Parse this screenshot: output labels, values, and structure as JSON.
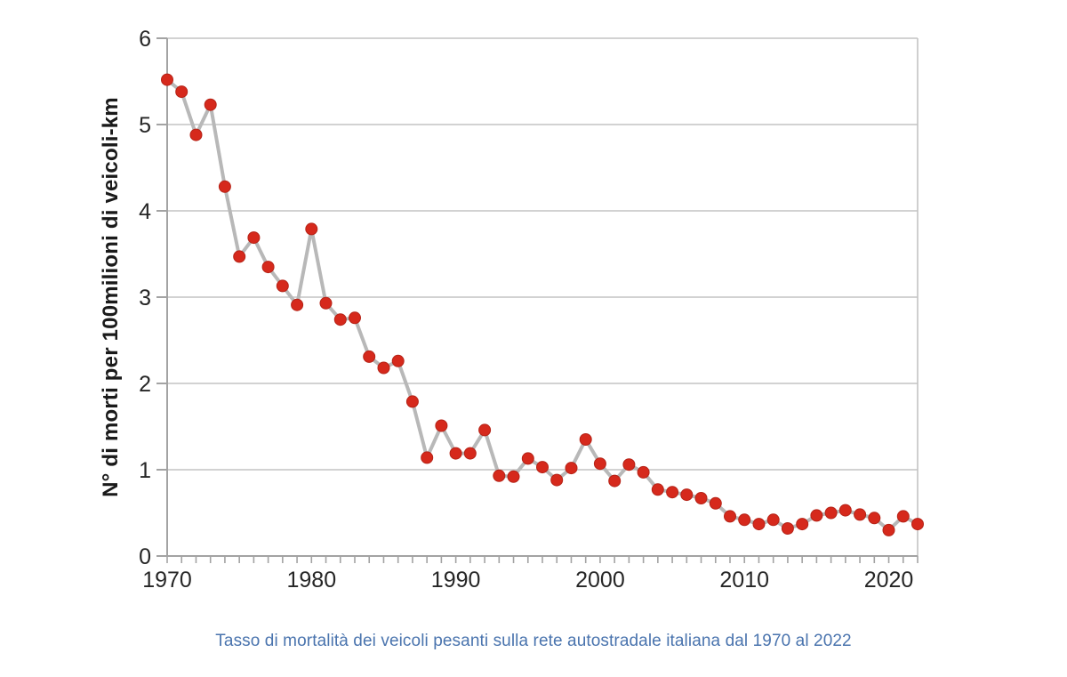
{
  "chart_data": {
    "type": "line",
    "title": "",
    "caption": "Tasso di mortalità dei veicoli pesanti sulla rete autostradale italiana dal 1970 al 2022",
    "ylabel": "N° di morti per 100milioni di veicoli-km",
    "xlabel": "",
    "x": [
      1970,
      1971,
      1972,
      1973,
      1974,
      1975,
      1976,
      1977,
      1978,
      1979,
      1980,
      1981,
      1982,
      1983,
      1984,
      1985,
      1986,
      1987,
      1988,
      1989,
      1990,
      1991,
      1992,
      1993,
      1994,
      1995,
      1996,
      1997,
      1998,
      1999,
      2000,
      2001,
      2002,
      2003,
      2004,
      2005,
      2006,
      2007,
      2008,
      2009,
      2010,
      2011,
      2012,
      2013,
      2014,
      2015,
      2016,
      2017,
      2018,
      2019,
      2020,
      2021,
      2022
    ],
    "values": [
      5.52,
      5.38,
      4.88,
      5.23,
      4.28,
      3.47,
      3.69,
      3.35,
      3.13,
      2.91,
      3.79,
      2.93,
      2.74,
      2.76,
      2.31,
      2.18,
      2.26,
      1.79,
      1.14,
      1.51,
      1.19,
      1.19,
      1.46,
      0.93,
      0.92,
      1.13,
      1.03,
      0.88,
      1.02,
      1.35,
      1.07,
      0.87,
      1.06,
      0.97,
      0.77,
      0.74,
      0.71,
      0.67,
      0.61,
      0.46,
      0.42,
      0.37,
      0.42,
      0.32,
      0.37,
      0.47,
      0.5,
      0.53,
      0.48,
      0.44,
      0.3,
      0.46,
      0.37
    ],
    "ylim": [
      0,
      6
    ],
    "xlim": [
      1970,
      2022
    ],
    "y_ticks": [
      0,
      1,
      2,
      3,
      4,
      5,
      6
    ],
    "x_tick_labels": [
      1970,
      1980,
      1990,
      2000,
      2010,
      2020
    ],
    "x_minor_tick_every": 1,
    "grid": "horizontal",
    "legend": "none",
    "colors": {
      "marker": "#d6291c",
      "marker_edge": "#b52317",
      "line": "#b8b8b8",
      "grid": "#c3c3c3",
      "axis": "#a3a3a3",
      "tick_label": "#262626",
      "ylabel": "#1a1a1a",
      "caption": "#4a74ae",
      "background": "#ffffff"
    }
  }
}
